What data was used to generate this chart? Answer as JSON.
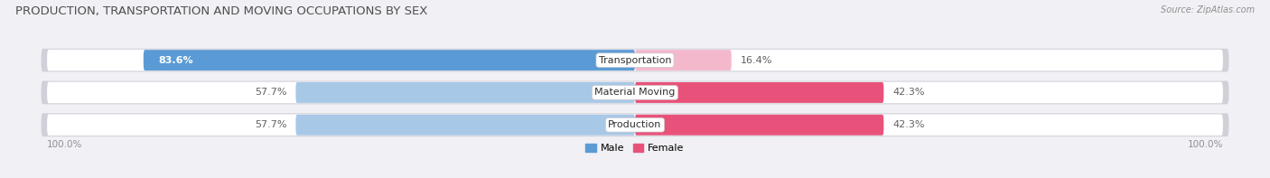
{
  "title": "PRODUCTION, TRANSPORTATION AND MOVING OCCUPATIONS BY SEX",
  "source": "Source: ZipAtlas.com",
  "categories": [
    "Transportation",
    "Material Moving",
    "Production"
  ],
  "male_values": [
    83.6,
    57.7,
    57.7
  ],
  "female_values": [
    16.4,
    42.3,
    42.3
  ],
  "male_colors": [
    "#5b9bd5",
    "#a8c8e8",
    "#a8c8e8"
  ],
  "female_colors": [
    "#f4b8cc",
    "#e8527a",
    "#e8527a"
  ],
  "male_label": "Male",
  "female_label": "Female",
  "background_color": "#f0f0f5",
  "bar_bg_color": "#ffffff",
  "bar_shadow_color": "#d0d0d8",
  "title_fontsize": 9.5,
  "cat_label_fontsize": 8,
  "pct_label_fontsize": 8,
  "source_fontsize": 7,
  "legend_fontsize": 8,
  "title_color": "#505050",
  "pct_color_outside": "#606060",
  "pct_color_inside_white": "#ffffff"
}
